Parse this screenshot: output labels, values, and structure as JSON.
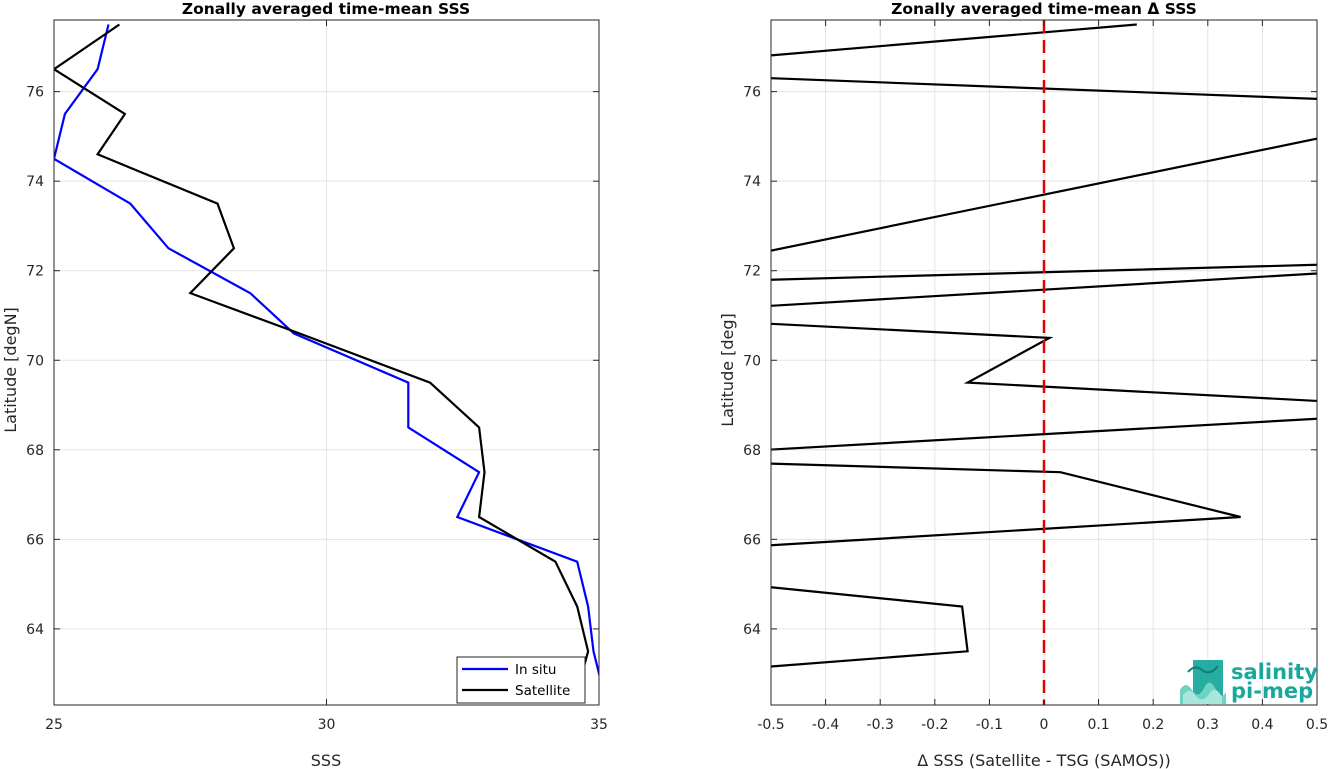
{
  "chart_data": [
    {
      "type": "line",
      "title": "Zonally averaged time-mean SSS",
      "xlabel": "SSS",
      "ylabel": "Latitude [degN]",
      "xlim": [
        25,
        35
      ],
      "ylim": [
        62.3,
        77.6
      ],
      "xticks": [
        25,
        30,
        35
      ],
      "yticks": [
        64,
        66,
        68,
        70,
        72,
        74,
        76
      ],
      "grid": true,
      "legend_location": "bottom-right",
      "series": [
        {
          "name": "In situ",
          "color": "#0000ff",
          "x": [
            26.0,
            25.8,
            25.2,
            25.0,
            26.4,
            27.1,
            28.6,
            29.4,
            31.5,
            31.5,
            32.8,
            32.4,
            34.6,
            34.8,
            34.9,
            35.1
          ],
          "y": [
            77.5,
            76.5,
            75.5,
            74.5,
            73.5,
            72.5,
            71.5,
            70.6,
            69.5,
            68.5,
            67.5,
            66.5,
            65.5,
            64.5,
            63.5,
            62.5
          ]
        },
        {
          "name": "Satellite",
          "color": "#000000",
          "x": [
            26.2,
            25.0,
            26.3,
            25.8,
            28.0,
            28.3,
            27.5,
            29.5,
            31.9,
            32.8,
            32.9,
            32.8,
            34.2,
            34.6,
            34.8,
            34.6
          ],
          "y": [
            77.5,
            76.5,
            75.5,
            74.6,
            73.5,
            72.5,
            71.5,
            70.6,
            69.5,
            68.5,
            67.5,
            66.5,
            65.5,
            64.5,
            63.5,
            62.6
          ]
        }
      ]
    },
    {
      "type": "line",
      "title": "Zonally averaged time-mean Δ SSS",
      "xlabel": "Δ SSS (Satellite - TSG (SAMOS))",
      "ylabel": "Latitude [deg]",
      "xlim": [
        -0.5,
        0.5
      ],
      "ylim": [
        62.3,
        77.6
      ],
      "xticks": [
        -0.5,
        -0.4,
        -0.3,
        -0.2,
        -0.1,
        0,
        0.1,
        0.2,
        0.3,
        0.4,
        0.5
      ],
      "yticks": [
        64,
        66,
        68,
        70,
        72,
        74,
        76
      ],
      "grid": true,
      "reference_line": {
        "x": 0,
        "color": "#e60000",
        "style": "dashed"
      },
      "series": [
        {
          "color": "#000000",
          "x": [
            0.17,
            -0.8,
            -0.5,
            0.8,
            -0.8,
            1.0,
            -0.8,
            0.01,
            -0.14,
            0.8,
            -0.8,
            0.03,
            0.36,
            -1.0,
            -0.8,
            -0.15,
            -0.14,
            -1.2
          ],
          "y": [
            77.5,
            76.5,
            76.3,
            75.7,
            71.7,
            72.3,
            71.0,
            70.5,
            69.5,
            68.9,
            67.8,
            67.5,
            66.5,
            65.5,
            65.3,
            64.5,
            63.5,
            62.5
          ]
        }
      ]
    }
  ],
  "legend": {
    "items": [
      {
        "label": "In situ",
        "color": "#0000ff"
      },
      {
        "label": "Satellite",
        "color": "#000000"
      }
    ]
  },
  "logo": {
    "line1": "salinity",
    "line2": "pi-mep"
  }
}
